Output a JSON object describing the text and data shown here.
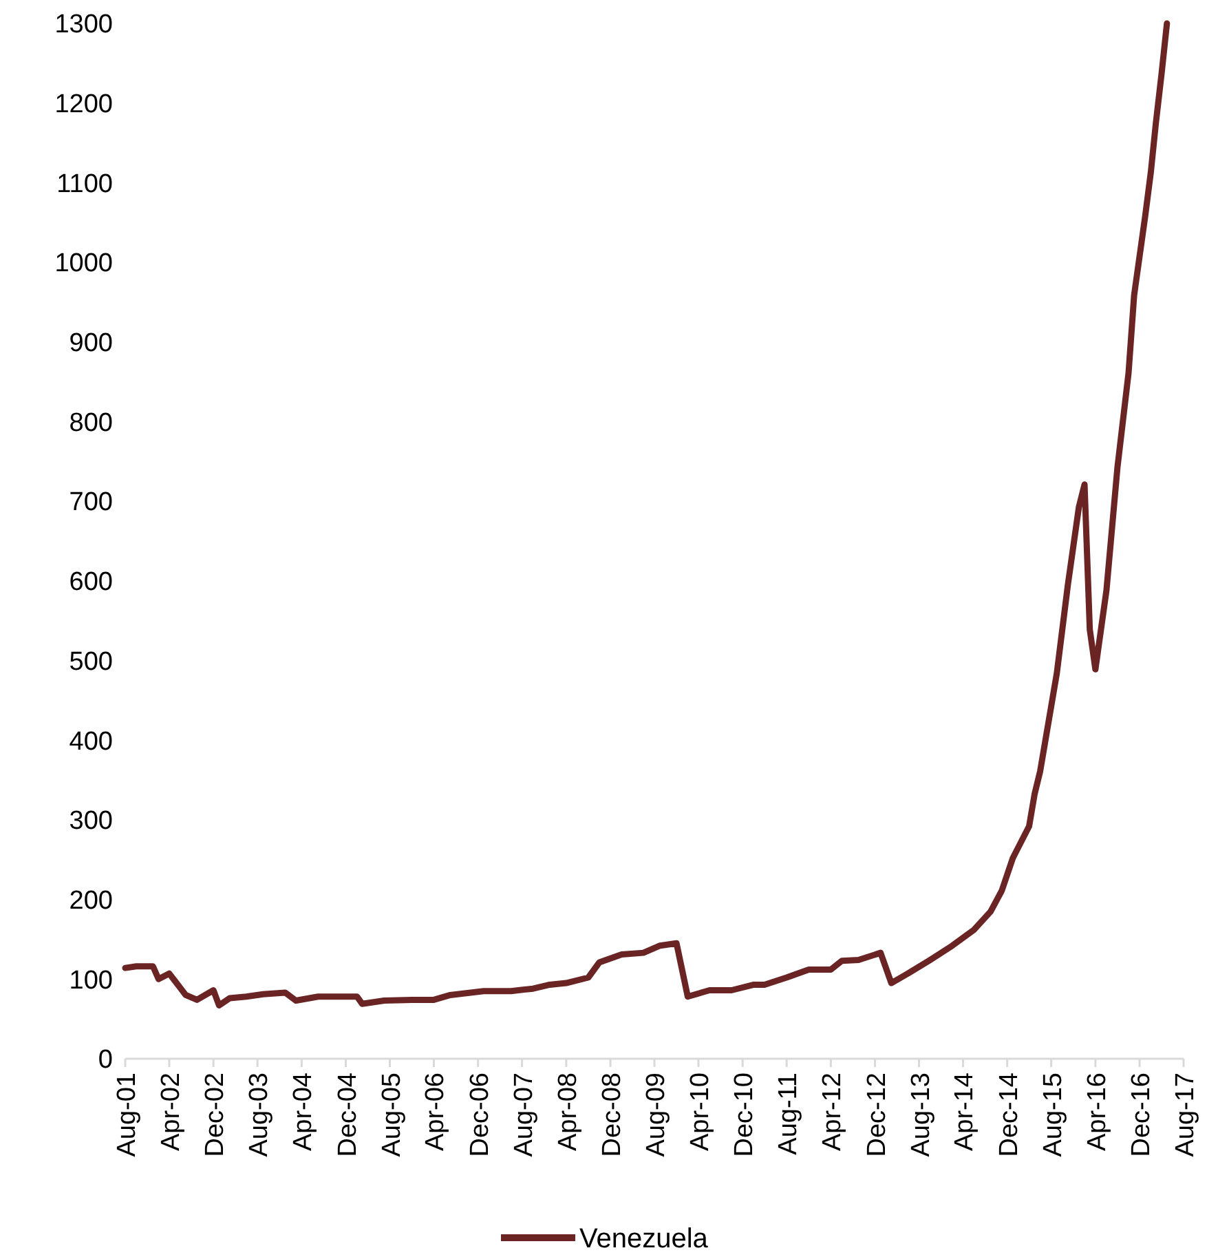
{
  "chart_data": {
    "type": "line",
    "xlim": [
      "2001-08",
      "2017-08"
    ],
    "ylim": [
      0,
      1300
    ],
    "yticks": [
      0,
      100,
      200,
      300,
      400,
      500,
      600,
      700,
      800,
      900,
      1000,
      1100,
      1200,
      1300
    ],
    "xticks": [
      {
        "value": "2001-08",
        "label": "Aug-01"
      },
      {
        "value": "2002-04",
        "label": "Apr-02"
      },
      {
        "value": "2002-12",
        "label": "Dec-02"
      },
      {
        "value": "2003-08",
        "label": "Aug-03"
      },
      {
        "value": "2004-04",
        "label": "Apr-04"
      },
      {
        "value": "2004-12",
        "label": "Dec-04"
      },
      {
        "value": "2005-08",
        "label": "Aug-05"
      },
      {
        "value": "2006-04",
        "label": "Apr-06"
      },
      {
        "value": "2006-12",
        "label": "Dec-06"
      },
      {
        "value": "2007-08",
        "label": "Aug-07"
      },
      {
        "value": "2008-04",
        "label": "Apr-08"
      },
      {
        "value": "2008-12",
        "label": "Dec-08"
      },
      {
        "value": "2009-08",
        "label": "Aug-09"
      },
      {
        "value": "2010-04",
        "label": "Apr-10"
      },
      {
        "value": "2010-12",
        "label": "Dec-10"
      },
      {
        "value": "2011-08",
        "label": "Aug-11"
      },
      {
        "value": "2012-04",
        "label": "Apr-12"
      },
      {
        "value": "2012-12",
        "label": "Dec-12"
      },
      {
        "value": "2013-08",
        "label": "Aug-13"
      },
      {
        "value": "2014-04",
        "label": "Apr-14"
      },
      {
        "value": "2014-12",
        "label": "Dec-14"
      },
      {
        "value": "2015-08",
        "label": "Aug-15"
      },
      {
        "value": "2016-04",
        "label": "Apr-16"
      },
      {
        "value": "2016-12",
        "label": "Dec-16"
      },
      {
        "value": "2017-08",
        "label": "Aug-17"
      }
    ],
    "x": [
      "2001-08",
      "2001-10",
      "2002-01",
      "2002-02",
      "2002-04",
      "2002-07",
      "2002-09",
      "2002-12",
      "2003-01",
      "2003-03",
      "2003-06",
      "2003-09",
      "2004-01",
      "2004-03",
      "2004-07",
      "2005-02",
      "2005-03",
      "2005-07",
      "2005-12",
      "2006-04",
      "2006-07",
      "2007-01",
      "2007-06",
      "2007-10",
      "2008-01",
      "2008-04",
      "2008-08",
      "2008-10",
      "2009-02",
      "2009-06",
      "2009-09",
      "2009-12",
      "2010-02",
      "2010-06",
      "2010-10",
      "2011-02",
      "2011-04",
      "2011-08",
      "2011-12",
      "2012-04",
      "2012-06",
      "2012-09",
      "2013-01",
      "2013-03",
      "2013-06",
      "2013-10",
      "2014-02",
      "2014-06",
      "2014-09",
      "2014-11",
      "2015-01",
      "2015-04",
      "2015-05",
      "2015-06",
      "2015-09",
      "2015-11",
      "2016-01",
      "2016-02",
      "2016-03",
      "2016-04",
      "2016-06",
      "2016-08",
      "2016-10",
      "2016-11",
      "2017-01",
      "2017-02",
      "2017-03",
      "2017-04",
      "2017-05"
    ],
    "series": [
      {
        "name": "Venezuela",
        "color": "#6b2424",
        "values": [
          114,
          116,
          116,
          100,
          107,
          80,
          74,
          86,
          67,
          76,
          78,
          81,
          83,
          73,
          78,
          78,
          69,
          73,
          74,
          74,
          80,
          85,
          85,
          88,
          93,
          95,
          102,
          121,
          131,
          133,
          142,
          145,
          78,
          86,
          86,
          93,
          93,
          102,
          112,
          112,
          123,
          124,
          133,
          95,
          107,
          124,
          142,
          162,
          185,
          211,
          252,
          292,
          332,
          361,
          484,
          595,
          693,
          721,
          539,
          489,
          588,
          743,
          861,
          959,
          1058,
          1113,
          1175,
          1236,
          1300
        ]
      }
    ],
    "legend": "bottom",
    "grid": false,
    "marker": "none",
    "line_style": "solid"
  }
}
